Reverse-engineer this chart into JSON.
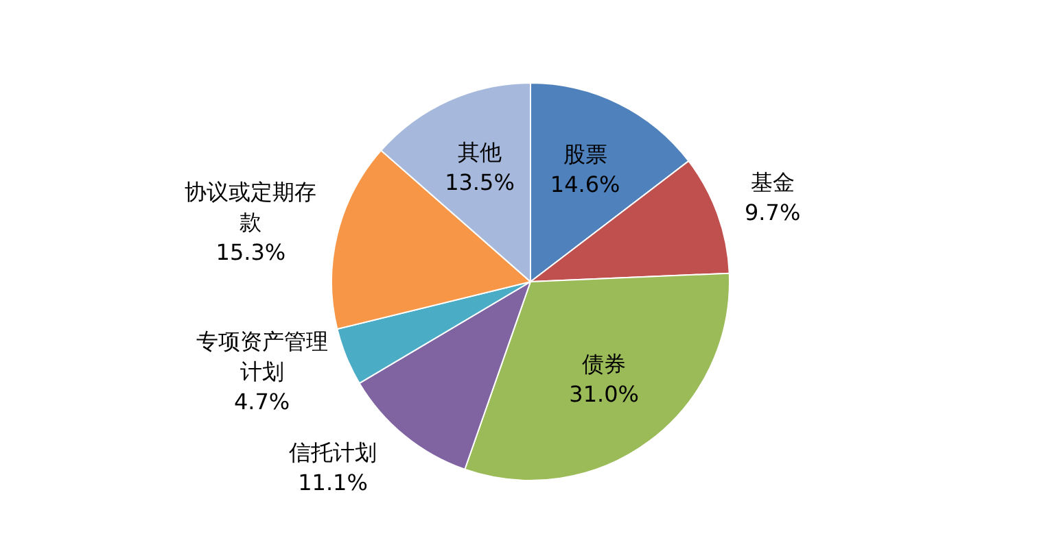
{
  "chart_data": {
    "type": "pie",
    "categories": [
      "股票",
      "基金",
      "债券",
      "信托计划",
      "专项资产管理计划",
      "协议或定期存款",
      "其他"
    ],
    "values": [
      14.6,
      9.7,
      31.0,
      11.1,
      4.7,
      15.3,
      13.5
    ],
    "colors": [
      "#4f81bd",
      "#c0504d",
      "#9bbb59",
      "#8064a2",
      "#4bacc6",
      "#f79646",
      "#a6b9dc"
    ],
    "value_labels": [
      "14.6%",
      "9.7%",
      "31.0%",
      "11.1%",
      "4.7%",
      "15.3%",
      "13.5%"
    ],
    "legend": false
  }
}
